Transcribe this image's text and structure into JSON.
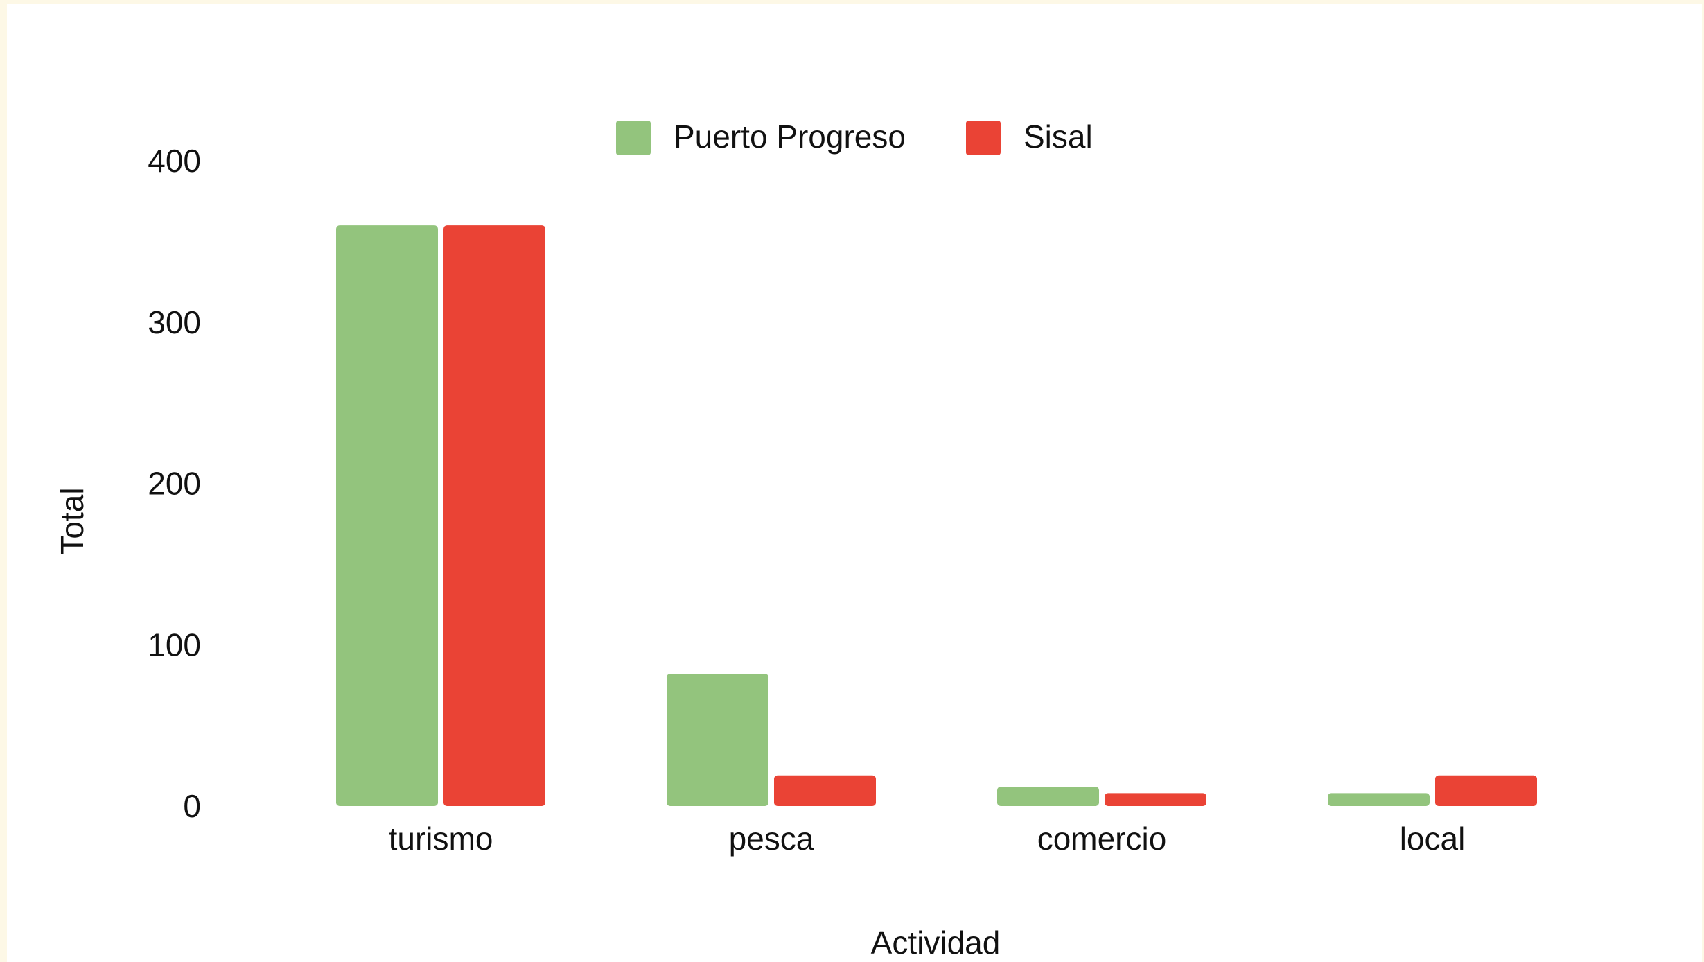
{
  "chart_data": {
    "type": "bar",
    "categories": [
      "turismo",
      "pesca",
      "comercio",
      "local"
    ],
    "series": [
      {
        "name": "Puerto Progreso",
        "color": "#93c47d",
        "values": [
          360,
          82,
          12,
          8
        ]
      },
      {
        "name": "Sisal",
        "color": "#ea4335",
        "values": [
          360,
          19,
          8,
          19
        ]
      }
    ],
    "xlabel": "Actividad",
    "ylabel": "Total",
    "ylim": [
      0,
      400
    ],
    "yticks": [
      0,
      100,
      200,
      300,
      400
    ],
    "grid": false,
    "legend_position": "top-center"
  }
}
